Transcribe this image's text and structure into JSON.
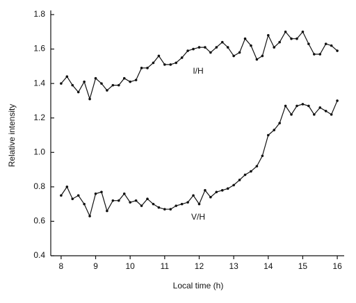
{
  "chart_data": {
    "type": "line",
    "x_label": "Local time (h)",
    "y_label": "Relative intensity",
    "x": [
      8,
      8.17,
      8.33,
      8.5,
      8.67,
      8.83,
      9,
      9.17,
      9.33,
      9.5,
      9.67,
      9.83,
      10,
      10.17,
      10.33,
      10.5,
      10.67,
      10.83,
      11,
      11.17,
      11.33,
      11.5,
      11.67,
      11.83,
      12,
      12.17,
      12.33,
      12.5,
      12.67,
      12.83,
      13,
      13.17,
      13.33,
      13.5,
      13.67,
      13.83,
      14,
      14.17,
      14.33,
      14.5,
      14.67,
      14.83,
      15,
      15.17,
      15.33,
      15.5,
      15.67,
      15.83,
      16
    ],
    "series": [
      {
        "name": "I/H",
        "color": "#111111",
        "values": [
          1.4,
          1.44,
          1.39,
          1.35,
          1.41,
          1.31,
          1.43,
          1.4,
          1.36,
          1.39,
          1.39,
          1.43,
          1.41,
          1.42,
          1.49,
          1.49,
          1.52,
          1.56,
          1.51,
          1.51,
          1.52,
          1.55,
          1.59,
          1.6,
          1.61,
          1.61,
          1.58,
          1.61,
          1.64,
          1.61,
          1.56,
          1.58,
          1.66,
          1.62,
          1.54,
          1.56,
          1.68,
          1.61,
          1.64,
          1.7,
          1.66,
          1.66,
          1.7,
          1.63,
          1.57,
          1.57,
          1.63,
          1.62,
          1.59
        ]
      },
      {
        "name": "V/H",
        "color": "#111111",
        "values": [
          0.75,
          0.8,
          0.73,
          0.75,
          0.7,
          0.63,
          0.76,
          0.77,
          0.66,
          0.72,
          0.72,
          0.76,
          0.71,
          0.72,
          0.69,
          0.73,
          0.7,
          0.68,
          0.67,
          0.67,
          0.69,
          0.7,
          0.71,
          0.75,
          0.7,
          0.78,
          0.74,
          0.77,
          0.78,
          0.79,
          0.81,
          0.84,
          0.87,
          0.89,
          0.92,
          0.98,
          1.1,
          1.13,
          1.17,
          1.27,
          1.22,
          1.27,
          1.28,
          1.27,
          1.22,
          1.26,
          1.24,
          1.22,
          1.3
        ]
      }
    ],
    "xlim": [
      7.7,
      16.2
    ],
    "ylim": [
      0.4,
      1.8
    ],
    "xticks": [
      8,
      9,
      10,
      11,
      12,
      13,
      14,
      15,
      16
    ],
    "yticks": [
      0.4,
      0.6,
      0.8,
      {
        "value": 1,
        "label": "1.0"
      },
      1.2,
      1.4,
      1.6,
      1.8
    ]
  }
}
